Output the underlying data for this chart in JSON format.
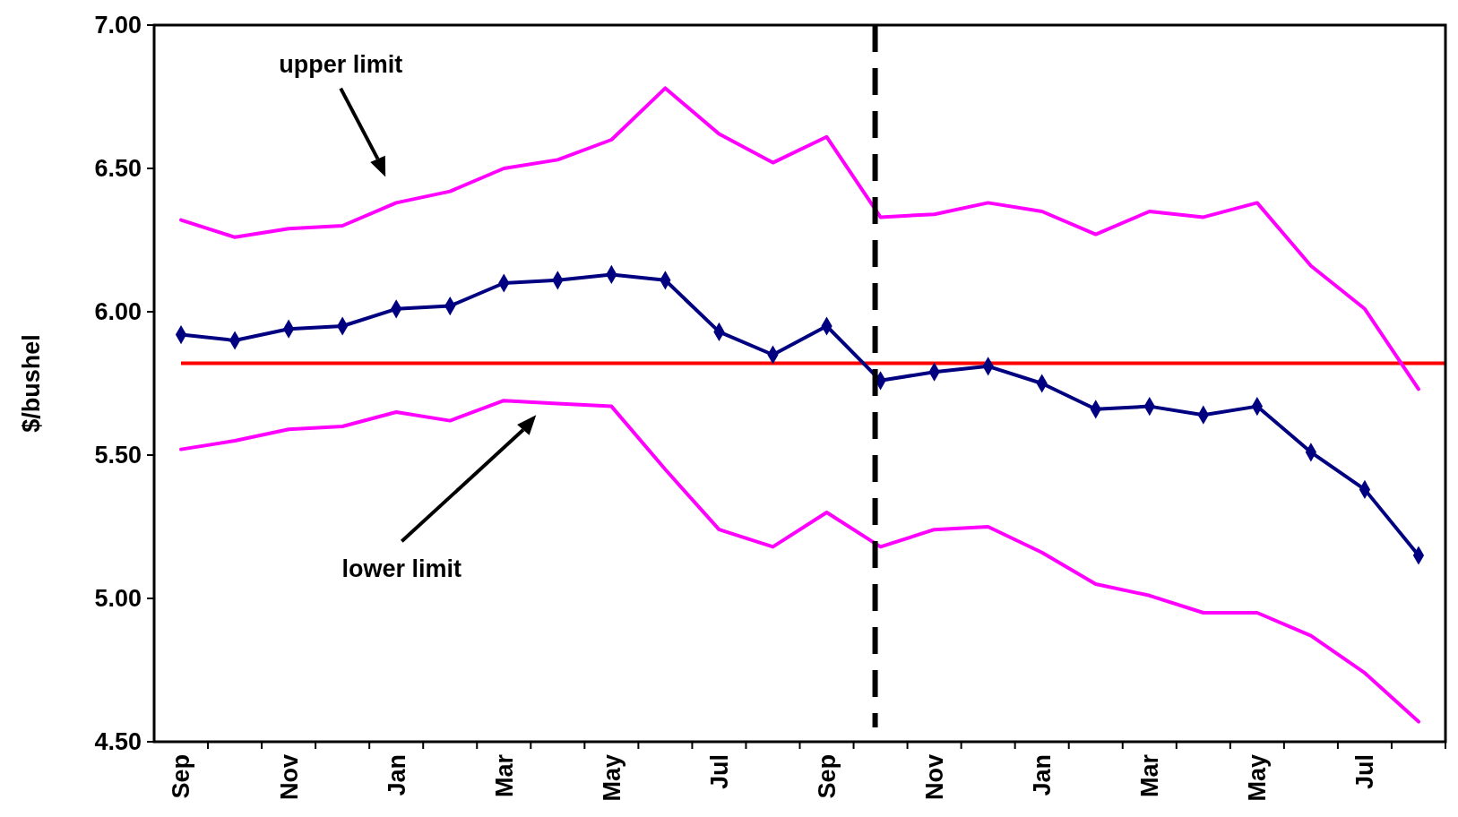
{
  "chart_data": {
    "type": "line",
    "ylabel": "$/bushel",
    "categories": [
      "Sep",
      null,
      "Nov",
      null,
      "Jan",
      null,
      "Mar",
      null,
      "May",
      null,
      "Jul",
      null,
      "Sep",
      null,
      "Nov",
      null,
      "Jan",
      null,
      "Mar",
      null,
      "May",
      null,
      "Jul",
      null
    ],
    "ylim": [
      4.5,
      7
    ],
    "yticks": [
      {
        "value": 4.5,
        "label": "4.50"
      },
      {
        "value": 5,
        "label": "5.00"
      },
      {
        "value": 5.5,
        "label": "5.50"
      },
      {
        "value": 6,
        "label": "6.00"
      },
      {
        "value": 6.5,
        "label": "6.50"
      },
      {
        "value": 7,
        "label": "7.00"
      }
    ],
    "series": [
      {
        "color": "#ff00ff",
        "marker": "none",
        "values": [
          6.32,
          6.26,
          6.29,
          6.3,
          6.38,
          6.42,
          6.5,
          6.53,
          6.6,
          6.78,
          6.62,
          6.52,
          6.61,
          6.33,
          6.34,
          6.38,
          6.35,
          6.27,
          6.35,
          6.33,
          6.38,
          6.16,
          6.01,
          5.73
        ]
      },
      {
        "color": "#ff00ff",
        "marker": "none",
        "values": [
          5.52,
          5.55,
          5.59,
          5.6,
          5.65,
          5.62,
          5.69,
          5.68,
          5.67,
          5.45,
          5.24,
          5.18,
          5.3,
          5.18,
          5.24,
          5.25,
          5.16,
          5.05,
          5.01,
          4.95,
          4.95,
          4.87,
          4.74,
          4.57
        ]
      },
      {
        "color": "#000080",
        "marker": "diamond",
        "values": [
          5.92,
          5.9,
          5.94,
          5.95,
          6.01,
          6.02,
          6.1,
          6.11,
          6.13,
          6.11,
          5.93,
          5.85,
          5.95,
          5.76,
          5.79,
          5.81,
          5.75,
          5.66,
          5.67,
          5.64,
          5.67,
          5.51,
          5.38,
          5.15
        ]
      }
    ],
    "ref_lines": [
      {
        "axis": "y",
        "value": 5.82,
        "color": "#ff0000",
        "line_style": "solid"
      }
    ],
    "annotations": [
      "upper limit",
      "lower limit"
    ]
  }
}
